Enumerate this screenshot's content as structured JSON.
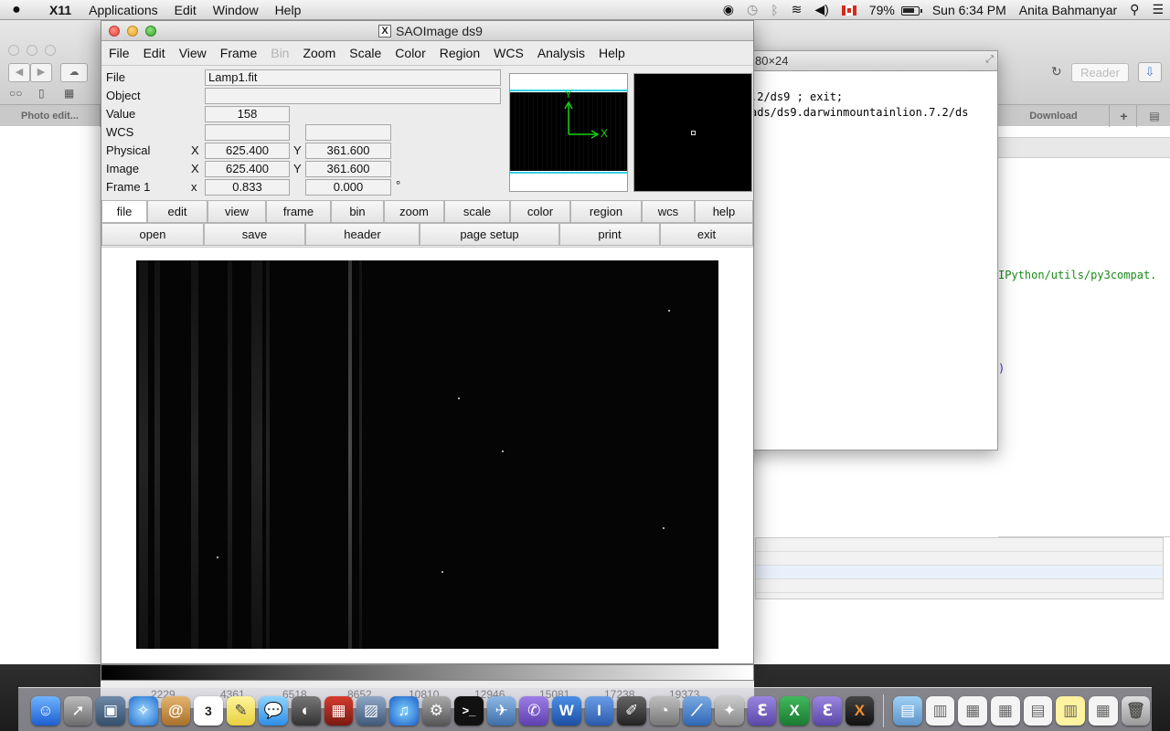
{
  "menubar": {
    "app_name": "X11",
    "items": [
      "Applications",
      "Edit",
      "Window",
      "Help"
    ],
    "battery": "79%",
    "clock": "Sun 6:34 PM",
    "user": "Anita Bahmanyar"
  },
  "background_browser": {
    "reader_label": "Reader",
    "tab_left": "Photo edit...",
    "tab_right": "Download"
  },
  "terminal": {
    "title": "80×24",
    "lines": [
      ".2/ds9 ; exit;",
      "ads/ds9.darwinmountainlion.7.2/ds"
    ],
    "code_line": "IPython/utils/py3compat.",
    "paren": ")"
  },
  "ds9": {
    "title": "SAOImage ds9",
    "menu": [
      "File",
      "Edit",
      "View",
      "Frame",
      "Bin",
      "Zoom",
      "Scale",
      "Color",
      "Region",
      "WCS",
      "Analysis",
      "Help"
    ],
    "info": {
      "file_label": "File",
      "file_value": "Lamp1.fit",
      "object_label": "Object",
      "object_value": "",
      "value_label": "Value",
      "value_value": "158",
      "wcs_label": "WCS",
      "physical_label": "Physical",
      "physical_x": "625.400",
      "physical_y": "361.600",
      "image_label": "Image",
      "image_x": "625.400",
      "image_y": "361.600",
      "frame_label": "Frame 1",
      "frame_zoom": "0.833",
      "frame_angle": "0.000",
      "axis_x": "X",
      "axis_y": "Y",
      "axis_x_lower": "x",
      "degree": "°"
    },
    "panner_axes": {
      "x": "X",
      "y": "Y"
    },
    "button_bar_top": [
      "file",
      "edit",
      "view",
      "frame",
      "bin",
      "zoom",
      "scale",
      "color",
      "region",
      "wcs",
      "help"
    ],
    "button_bar_bottom": [
      "open",
      "save",
      "header",
      "page setup",
      "print",
      "exit"
    ],
    "colorbar_ticks": [
      "2229",
      "4361",
      "6518",
      "8652",
      "10810",
      "12946",
      "15081",
      "17238",
      "19373"
    ]
  },
  "colors": {
    "panner_axes": "#18d018",
    "panner_bounds": "#36d0e6"
  },
  "dock": {
    "icons": [
      "finder-icon",
      "launchpad-icon",
      "preview-icon",
      "safari-icon",
      "contacts-icon",
      "calendar-icon",
      "notes-icon",
      "messages-icon",
      "photo-booth-icon",
      "photo-icon",
      "iphoto-icon",
      "itunes-icon",
      "system-preferences-icon",
      "terminal-icon",
      "xcode-icon",
      "viber-icon",
      "word-icon",
      "text-edit-icon",
      "pencil-icon",
      "ds9-icon",
      "keynote-icon",
      "python-icon",
      "emacs-icon",
      "excel-icon",
      "emacs2-icon",
      "x11-icon",
      "downloads-stack-icon",
      "documents-stack-icon",
      "trash-icon"
    ],
    "calendar_day": "3"
  }
}
